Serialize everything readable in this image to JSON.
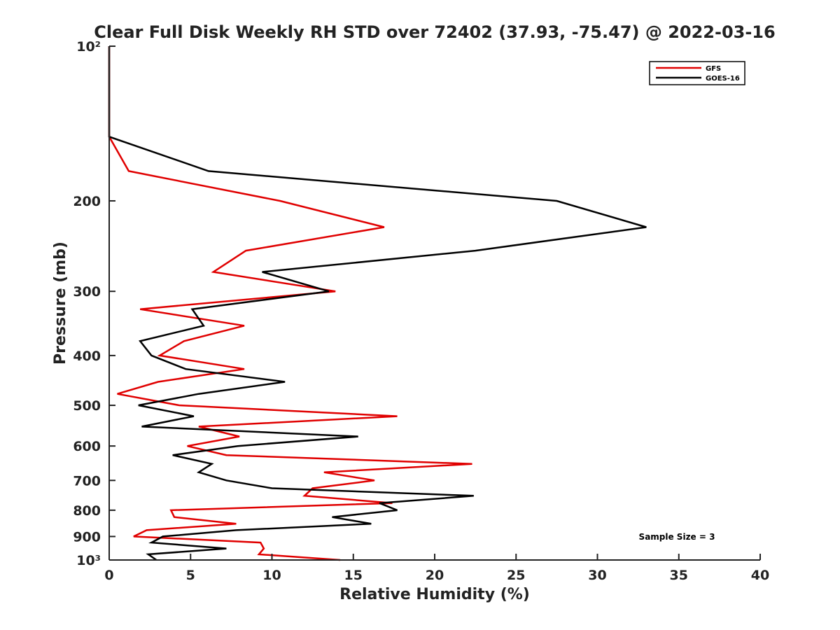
{
  "chart_data": {
    "type": "line",
    "title": "Clear Full Disk Weekly RH STD over 72402 (37.93, -75.47) @ 2022-03-16",
    "xlabel": "Relative Humidity (%)",
    "ylabel": "Pressure (mb)",
    "xlim": [
      0,
      40
    ],
    "ylim": [
      100,
      1000
    ],
    "yscale": "log",
    "y_reversed": true,
    "grid": false,
    "x_ticks": [
      0,
      5,
      10,
      15,
      20,
      25,
      30,
      35,
      40
    ],
    "x_tick_labels": [
      "0",
      "5",
      "10",
      "15",
      "20",
      "25",
      "30",
      "35",
      "40"
    ],
    "y_ticks": [
      100,
      200,
      300,
      400,
      500,
      600,
      700,
      800,
      900,
      1000
    ],
    "y_tick_labels": [
      "10²",
      "200",
      "300",
      "400",
      "500",
      "600",
      "700",
      "800",
      "900",
      "10³"
    ],
    "legend_position": "top-right",
    "annotation": "Sample Size = 3",
    "series": [
      {
        "name": "GFS",
        "color": "#e00000",
        "pressure": [
          100,
          125,
          150,
          175,
          200,
          225,
          250,
          275,
          300,
          325,
          350,
          375,
          400,
          425,
          450,
          475,
          500,
          525,
          550,
          575,
          600,
          625,
          650,
          675,
          700,
          725,
          750,
          775,
          800,
          825,
          850,
          875,
          900,
          925,
          950,
          975,
          1000
        ],
        "values": [
          0,
          0,
          0,
          1.2,
          10.5,
          16.9,
          8.4,
          6.4,
          13.9,
          1.9,
          8.3,
          4.6,
          3.1,
          8.3,
          3.0,
          0.5,
          4.3,
          17.7,
          5.5,
          8.0,
          4.8,
          7.2,
          22.3,
          13.2,
          16.3,
          12.5,
          12.0,
          17.4,
          3.8,
          4.0,
          7.8,
          2.3,
          1.5,
          9.3,
          9.5,
          9.2,
          14.2
        ]
      },
      {
        "name": "GOES-16",
        "color": "#000000",
        "pressure": [
          100,
          125,
          150,
          175,
          200,
          225,
          250,
          275,
          300,
          325,
          350,
          375,
          400,
          425,
          450,
          475,
          500,
          525,
          550,
          575,
          600,
          625,
          650,
          675,
          700,
          725,
          750,
          775,
          800,
          825,
          850,
          875,
          900,
          925,
          950,
          975,
          1000
        ],
        "values": [
          0,
          0,
          0,
          6.1,
          27.5,
          33.0,
          22.5,
          9.4,
          13.5,
          5.1,
          5.8,
          1.9,
          2.6,
          4.7,
          10.8,
          5.5,
          1.8,
          5.2,
          2.0,
          15.3,
          7.9,
          3.9,
          6.3,
          5.5,
          7.2,
          10.0,
          22.4,
          16.6,
          17.7,
          13.7,
          16.1,
          7.8,
          3.3,
          2.6,
          7.2,
          2.4,
          2.9
        ]
      }
    ]
  }
}
